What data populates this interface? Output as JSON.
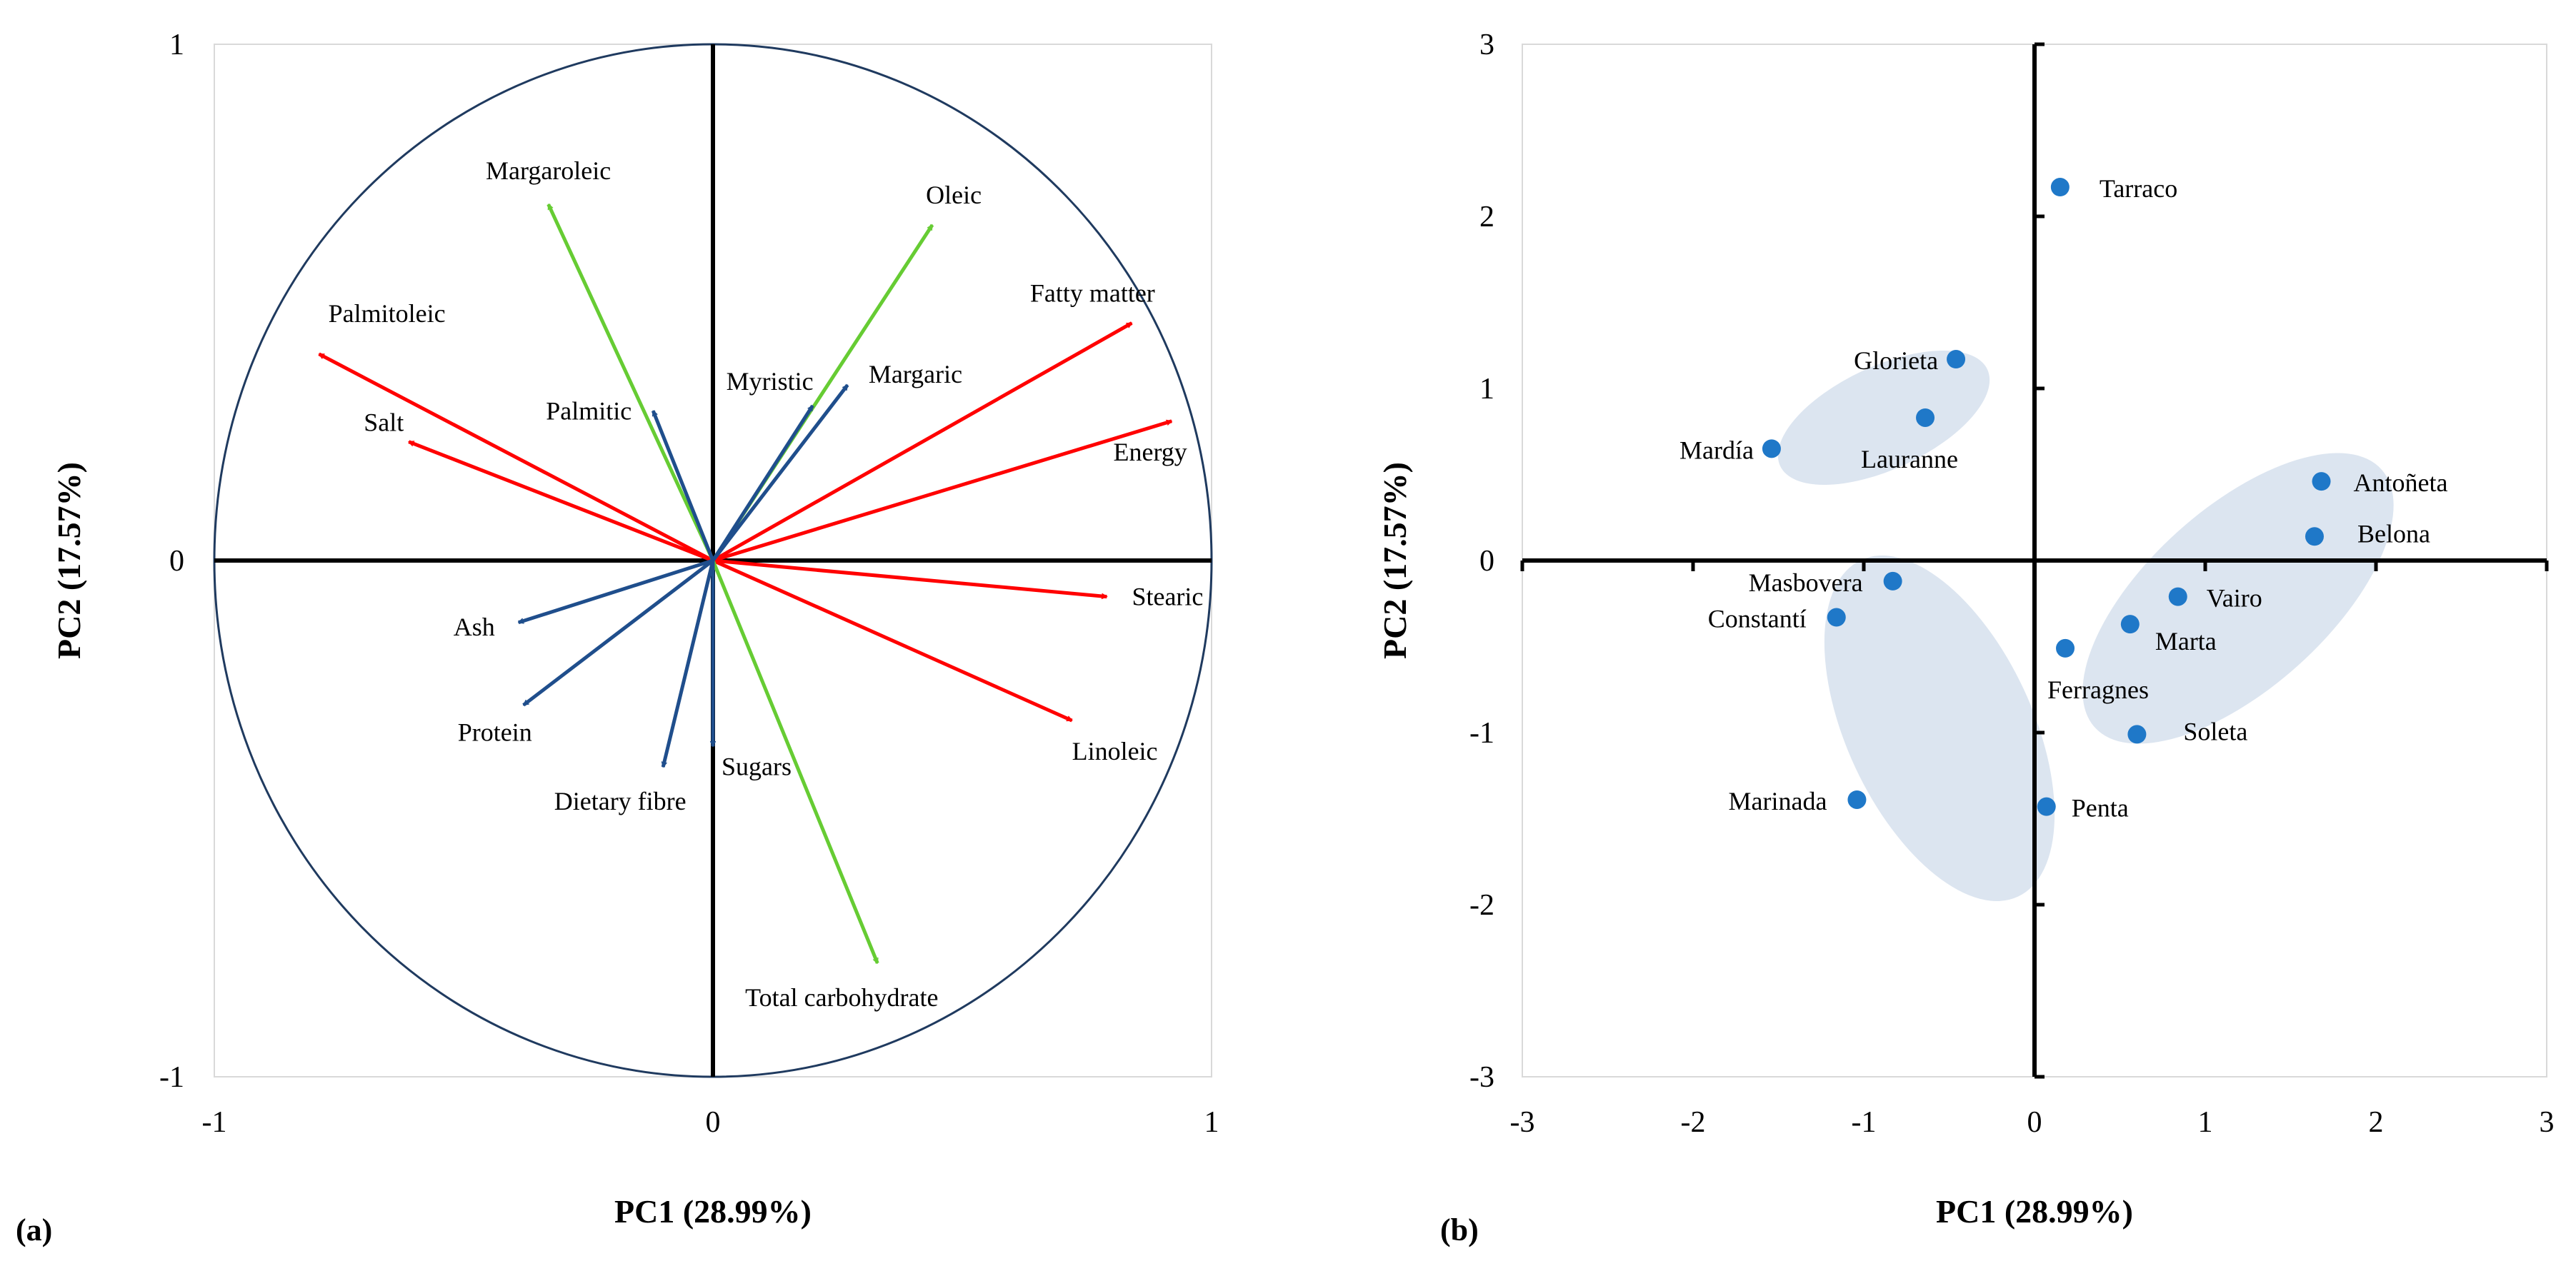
{
  "colors": {
    "red": "#ff0000",
    "blue": "#1f4e8c",
    "green": "#66cc33",
    "circle": "#1f3a5f",
    "point": "#1f78c8",
    "ellipse": "#dce5f0",
    "grid": "#d9d9d9",
    "axis": "#000000"
  },
  "chart_data": [
    {
      "type": "scatter",
      "subtype": "pca-loadings-biplot",
      "panel_label": "(a)",
      "xlabel": "PC1 (28.99%)",
      "ylabel": "PC2 (17.57%)",
      "xlim": [
        -1,
        1
      ],
      "ylim": [
        -1,
        1
      ],
      "x_ticks": [
        "-1",
        "0",
        "1"
      ],
      "y_ticks": [
        "-1",
        "0",
        "1"
      ],
      "unit_circle": true,
      "vectors": [
        {
          "name": "Palmitoleic",
          "x": -0.79,
          "y": 0.4,
          "color": "red"
        },
        {
          "name": "Salt",
          "x": -0.61,
          "y": 0.23,
          "color": "red"
        },
        {
          "name": "Fatty matter",
          "x": 0.84,
          "y": 0.46,
          "color": "red"
        },
        {
          "name": "Energy",
          "x": 0.92,
          "y": 0.27,
          "color": "red"
        },
        {
          "name": "Stearic",
          "x": 0.79,
          "y": -0.07,
          "color": "red"
        },
        {
          "name": "Linoleic",
          "x": 0.72,
          "y": -0.31,
          "color": "red"
        },
        {
          "name": "Margaroleic",
          "x": -0.33,
          "y": 0.69,
          "color": "green"
        },
        {
          "name": "Oleic",
          "x": 0.44,
          "y": 0.65,
          "color": "green"
        },
        {
          "name": "Total carbohydrate",
          "x": 0.33,
          "y": -0.78,
          "color": "green"
        },
        {
          "name": "Myristic",
          "x": 0.2,
          "y": 0.3,
          "color": "blue"
        },
        {
          "name": "Margaric",
          "x": 0.27,
          "y": 0.34,
          "color": "blue"
        },
        {
          "name": "Palmitic",
          "x": -0.12,
          "y": 0.29,
          "color": "blue"
        },
        {
          "name": "Ash",
          "x": -0.39,
          "y": -0.12,
          "color": "blue"
        },
        {
          "name": "Protein",
          "x": -0.38,
          "y": -0.28,
          "color": "blue"
        },
        {
          "name": "Dietary fibre",
          "x": -0.1,
          "y": -0.4,
          "color": "blue"
        },
        {
          "name": "Sugars",
          "x": 0.0,
          "y": -0.36,
          "color": "blue"
        }
      ]
    },
    {
      "type": "scatter",
      "subtype": "pca-scores",
      "panel_label": "(b)",
      "xlabel": "PC1 (28.99%)",
      "ylabel": "PC2 (17.57%)",
      "xlim": [
        -3,
        3
      ],
      "ylim": [
        -3,
        3
      ],
      "x_ticks": [
        "-3",
        "-2",
        "-1",
        "0",
        "1",
        "2",
        "3"
      ],
      "y_ticks": [
        "-3",
        "-2",
        "-1",
        "0",
        "1",
        "2",
        "3"
      ],
      "points": [
        {
          "name": "Tarraco",
          "x": 0.15,
          "y": 2.17
        },
        {
          "name": "Glorieta",
          "x": -0.46,
          "y": 1.17
        },
        {
          "name": "Lauranne",
          "x": -0.64,
          "y": 0.83
        },
        {
          "name": "Mardía",
          "x": -1.54,
          "y": 0.65
        },
        {
          "name": "Antoñeta",
          "x": 1.68,
          "y": 0.46
        },
        {
          "name": "Belona",
          "x": 1.64,
          "y": 0.14
        },
        {
          "name": "Masbovera",
          "x": -0.83,
          "y": -0.12
        },
        {
          "name": "Constantí",
          "x": -1.16,
          "y": -0.33
        },
        {
          "name": "Vairo",
          "x": 0.84,
          "y": -0.21
        },
        {
          "name": "Marta",
          "x": 0.56,
          "y": -0.37
        },
        {
          "name": "Ferragnes",
          "x": 0.18,
          "y": -0.51
        },
        {
          "name": "Soleta",
          "x": 0.6,
          "y": -1.01
        },
        {
          "name": "Marinada",
          "x": -1.04,
          "y": -1.39
        },
        {
          "name": "Penta",
          "x": 0.07,
          "y": -1.43
        }
      ],
      "groups": [
        {
          "members": [
            "Glorieta",
            "Lauranne",
            "Mardía"
          ]
        },
        {
          "members": [
            "Antoñeta",
            "Belona",
            "Vairo",
            "Marta",
            "Ferragnes",
            "Soleta"
          ]
        },
        {
          "members": [
            "Masbovera",
            "Constantí",
            "Marinada",
            "Penta"
          ]
        }
      ]
    }
  ]
}
